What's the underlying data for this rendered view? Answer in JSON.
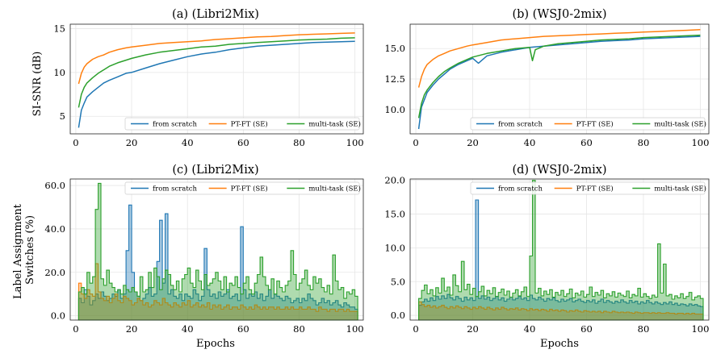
{
  "chart_data": [
    {
      "id": "a",
      "type": "line",
      "title": "(a) (Libri2Mix)",
      "xlabel": "",
      "ylabel": "SI-SNR (dB)",
      "xlim": [
        -2,
        103
      ],
      "ylim": [
        3,
        15.5
      ],
      "xticks": [
        0,
        20,
        40,
        60,
        80,
        100
      ],
      "yticks": [
        5,
        10,
        15
      ],
      "ytick_labels": [
        "5",
        "10",
        "15"
      ],
      "legend": "bottom-right",
      "grid": true,
      "series": [
        {
          "name": "from scratch",
          "color": "#1f77b4",
          "x": [
            1,
            2,
            3,
            4,
            6,
            8,
            10,
            12,
            15,
            18,
            20,
            25,
            30,
            35,
            40,
            45,
            50,
            55,
            60,
            65,
            70,
            75,
            80,
            85,
            90,
            95,
            100
          ],
          "values": [
            3.7,
            5.7,
            6.5,
            7.2,
            7.8,
            8.3,
            8.8,
            9.1,
            9.5,
            9.9,
            10.0,
            10.5,
            11.0,
            11.4,
            11.8,
            12.1,
            12.3,
            12.6,
            12.8,
            13.0,
            13.1,
            13.2,
            13.3,
            13.4,
            13.45,
            13.5,
            13.55
          ]
        },
        {
          "name": "PT-FT (SE)",
          "color": "#ff7f0e",
          "x": [
            1,
            2,
            3,
            4,
            6,
            8,
            10,
            12,
            15,
            18,
            20,
            25,
            30,
            35,
            40,
            45,
            50,
            55,
            60,
            65,
            70,
            75,
            80,
            85,
            90,
            95,
            100
          ],
          "values": [
            8.7,
            9.9,
            10.6,
            11.0,
            11.5,
            11.8,
            12.0,
            12.3,
            12.6,
            12.8,
            12.9,
            13.1,
            13.3,
            13.4,
            13.5,
            13.6,
            13.75,
            13.85,
            13.95,
            14.05,
            14.1,
            14.2,
            14.3,
            14.35,
            14.4,
            14.45,
            14.5
          ]
        },
        {
          "name": "multi-task (SE)",
          "color": "#2ca02c",
          "x": [
            1,
            2,
            3,
            4,
            6,
            8,
            10,
            12,
            15,
            18,
            20,
            25,
            30,
            35,
            40,
            45,
            50,
            55,
            60,
            65,
            70,
            75,
            80,
            85,
            90,
            95,
            100
          ],
          "values": [
            6.0,
            7.5,
            8.3,
            8.8,
            9.4,
            9.9,
            10.3,
            10.7,
            11.1,
            11.4,
            11.6,
            12.0,
            12.3,
            12.5,
            12.7,
            12.9,
            13.0,
            13.2,
            13.3,
            13.4,
            13.5,
            13.6,
            13.7,
            13.75,
            13.8,
            13.9,
            13.95
          ]
        }
      ]
    },
    {
      "id": "b",
      "type": "line",
      "title": "(b) (WSJ0-2mix)",
      "xlabel": "",
      "ylabel": "",
      "xlim": [
        -2,
        103
      ],
      "ylim": [
        8,
        17
      ],
      "xticks": [
        0,
        20,
        40,
        60,
        80,
        100
      ],
      "yticks": [
        10,
        12.5,
        15
      ],
      "ytick_labels": [
        "10.0",
        "12.5",
        "15.0"
      ],
      "legend": "bottom-right",
      "grid": true,
      "series": [
        {
          "name": "from scratch",
          "color": "#1f77b4",
          "x": [
            1,
            2,
            3,
            4,
            6,
            8,
            10,
            12,
            15,
            18,
            20,
            22,
            25,
            30,
            35,
            40,
            45,
            50,
            55,
            60,
            65,
            70,
            75,
            80,
            85,
            90,
            95,
            100
          ],
          "values": [
            8.4,
            10.2,
            10.8,
            11.4,
            12.0,
            12.5,
            12.9,
            13.3,
            13.7,
            14.0,
            14.2,
            13.8,
            14.4,
            14.7,
            14.9,
            15.1,
            15.2,
            15.3,
            15.4,
            15.5,
            15.6,
            15.65,
            15.7,
            15.8,
            15.85,
            15.9,
            15.95,
            16.0
          ]
        },
        {
          "name": "PT-FT (SE)",
          "color": "#ff7f0e",
          "x": [
            1,
            2,
            3,
            4,
            6,
            8,
            10,
            12,
            15,
            18,
            20,
            25,
            30,
            35,
            40,
            45,
            50,
            55,
            60,
            65,
            70,
            75,
            80,
            85,
            90,
            95,
            100
          ],
          "values": [
            11.8,
            12.7,
            13.3,
            13.7,
            14.1,
            14.4,
            14.6,
            14.8,
            15.0,
            15.2,
            15.3,
            15.5,
            15.7,
            15.8,
            15.9,
            16.0,
            16.05,
            16.1,
            16.15,
            16.2,
            16.25,
            16.3,
            16.35,
            16.4,
            16.45,
            16.5,
            16.55
          ]
        },
        {
          "name": "multi-task (SE)",
          "color": "#2ca02c",
          "x": [
            1,
            2,
            3,
            4,
            6,
            8,
            10,
            12,
            15,
            18,
            20,
            25,
            30,
            35,
            40,
            41,
            42,
            45,
            50,
            55,
            60,
            65,
            70,
            75,
            80,
            85,
            90,
            95,
            100
          ],
          "values": [
            9.3,
            10.5,
            11.2,
            11.6,
            12.2,
            12.7,
            13.1,
            13.4,
            13.8,
            14.1,
            14.3,
            14.6,
            14.8,
            15.0,
            15.1,
            14.0,
            14.9,
            15.2,
            15.4,
            15.5,
            15.6,
            15.7,
            15.75,
            15.8,
            15.9,
            15.95,
            16.0,
            16.05,
            16.1
          ]
        }
      ]
    },
    {
      "id": "c",
      "type": "area",
      "title": "(c) (Libri2Mix)",
      "xlabel": "Epochs",
      "ylabel": "Label Assignment\nSwitches (%)",
      "xlim": [
        -2,
        103
      ],
      "ylim": [
        -2,
        63
      ],
      "xticks": [
        0,
        20,
        40,
        60,
        80,
        100
      ],
      "yticks": [
        0,
        20,
        40,
        60
      ],
      "ytick_labels": [
        "0.0",
        "20.0",
        "40.0",
        "60.0"
      ],
      "legend": "top-right",
      "grid": true,
      "series": [
        {
          "name": "from scratch",
          "color": "#1f77b4",
          "values": [
            8,
            6,
            12,
            9,
            5,
            7,
            10,
            8,
            11,
            9,
            7,
            8,
            10,
            9,
            12,
            8,
            10,
            30,
            51,
            20,
            11,
            9,
            7,
            8,
            10,
            13,
            9,
            10,
            25,
            44,
            15,
            47,
            10,
            12,
            9,
            8,
            10,
            7,
            10,
            9,
            8,
            12,
            10,
            7,
            9,
            31,
            12,
            9,
            10,
            8,
            11,
            9,
            10,
            12,
            8,
            9,
            10,
            7,
            41,
            12,
            8,
            10,
            9,
            11,
            8,
            10,
            7,
            9,
            12,
            8,
            10,
            9,
            8,
            7,
            9,
            8,
            6,
            7,
            8,
            6,
            8,
            7,
            10,
            8,
            7,
            5,
            6,
            8,
            6,
            7,
            5,
            6,
            7,
            5,
            4,
            6,
            5,
            4,
            4,
            3
          ]
        },
        {
          "name": "PT-FT (SE)",
          "color": "#ff7f0e",
          "values": [
            15,
            10,
            8,
            12,
            10,
            9,
            24,
            11,
            8,
            7,
            9,
            6,
            8,
            10,
            7,
            6,
            9,
            8,
            7,
            5,
            6,
            8,
            7,
            5,
            6,
            4,
            5,
            7,
            6,
            5,
            8,
            6,
            5,
            4,
            6,
            5,
            4,
            6,
            5,
            7,
            4,
            5,
            6,
            4,
            5,
            4,
            6,
            3,
            5,
            4,
            5,
            3,
            4,
            5,
            3,
            4,
            4,
            3,
            5,
            4,
            3,
            4,
            3,
            5,
            4,
            3,
            4,
            3,
            4,
            4,
            3,
            4,
            3,
            3,
            4,
            3,
            4,
            3,
            3,
            4,
            3,
            3,
            4,
            3,
            3,
            2,
            4,
            3,
            3,
            2,
            3,
            3,
            2,
            3,
            3,
            2,
            3,
            2,
            2,
            2
          ]
        },
        {
          "name": "multi-task (SE)",
          "color": "#2ca02c",
          "values": [
            11,
            13,
            10,
            20,
            15,
            18,
            49,
            61,
            17,
            14,
            21,
            15,
            13,
            11,
            12,
            10,
            14,
            12,
            11,
            13,
            11,
            9,
            18,
            11,
            12,
            20,
            13,
            22,
            18,
            12,
            17,
            21,
            19,
            14,
            12,
            16,
            11,
            17,
            19,
            22,
            15,
            13,
            21,
            16,
            12,
            19,
            14,
            15,
            17,
            20,
            16,
            12,
            18,
            11,
            15,
            14,
            18,
            13,
            10,
            15,
            18,
            12,
            10,
            15,
            19,
            27,
            18,
            14,
            12,
            17,
            10,
            16,
            13,
            11,
            14,
            16,
            30,
            19,
            12,
            15,
            17,
            21,
            14,
            12,
            18,
            15,
            17,
            13,
            11,
            14,
            10,
            28,
            16,
            12,
            13,
            8,
            11,
            10,
            12,
            9
          ]
        }
      ]
    },
    {
      "id": "d",
      "type": "area",
      "title": "(d) (WSJ0-2mix)",
      "xlabel": "Epochs",
      "ylabel": "",
      "xlim": [
        -2,
        103
      ],
      "ylim": [
        -0.7,
        20.2
      ],
      "xticks": [
        0,
        20,
        40,
        60,
        80,
        100
      ],
      "yticks": [
        0,
        5,
        10,
        15,
        20
      ],
      "ytick_labels": [
        "0.0",
        "5.0",
        "10.0",
        "15.0",
        "20.0"
      ],
      "legend": "top-right",
      "grid": true,
      "series": [
        {
          "name": "from scratch",
          "color": "#1f77b4",
          "values": [
            1.5,
            2.0,
            2.4,
            2.1,
            2.6,
            2.2,
            2.8,
            2.4,
            2.9,
            2.5,
            3.1,
            2.6,
            2.3,
            2.8,
            2.5,
            2.1,
            2.7,
            2.3,
            2.6,
            2.2,
            17.1,
            2.5,
            2.9,
            2.4,
            2.7,
            2.2,
            2.5,
            2.8,
            2.3,
            2.6,
            2.1,
            2.4,
            2.7,
            2.3,
            2.5,
            2.8,
            2.4,
            2.6,
            2.2,
            3.0,
            2.5,
            2.3,
            2.7,
            2.4,
            2.1,
            2.5,
            2.3,
            2.6,
            2.2,
            2.0,
            2.4,
            2.1,
            2.3,
            2.5,
            2.0,
            2.2,
            2.4,
            2.1,
            1.9,
            2.2,
            2.0,
            2.3,
            1.8,
            2.1,
            2.4,
            1.9,
            2.2,
            2.0,
            1.8,
            2.1,
            1.9,
            2.3,
            2.0,
            1.8,
            2.2,
            1.9,
            2.1,
            1.7,
            2.0,
            1.8,
            2.2,
            1.9,
            1.7,
            2.0,
            1.8,
            1.6,
            1.9,
            1.7,
            2.0,
            1.6,
            1.8,
            1.5,
            1.7,
            1.6,
            1.4,
            1.7,
            1.5,
            1.6,
            1.4,
            1.3
          ]
        },
        {
          "name": "PT-FT (SE)",
          "color": "#ff7f0e",
          "values": [
            2.0,
            1.6,
            1.3,
            1.5,
            1.2,
            1.4,
            1.1,
            1.3,
            1.5,
            1.2,
            1.0,
            1.3,
            1.1,
            1.4,
            1.2,
            1.0,
            1.3,
            1.1,
            0.9,
            1.2,
            1.0,
            1.3,
            1.1,
            0.9,
            1.2,
            1.0,
            0.8,
            1.1,
            0.9,
            1.2,
            1.0,
            0.8,
            1.0,
            0.9,
            1.1,
            0.8,
            1.0,
            0.9,
            0.7,
            1.0,
            0.8,
            0.9,
            0.7,
            0.9,
            0.8,
            0.6,
            0.9,
            0.7,
            0.8,
            0.6,
            0.8,
            0.7,
            0.5,
            0.7,
            0.6,
            0.8,
            0.6,
            0.5,
            0.7,
            0.6,
            0.5,
            0.6,
            0.5,
            0.6,
            0.4,
            0.6,
            0.5,
            0.4,
            0.6,
            0.5,
            0.4,
            0.5,
            0.4,
            0.5,
            0.4,
            0.3,
            0.5,
            0.4,
            0.3,
            0.4,
            0.4,
            0.3,
            0.4,
            0.3,
            0.4,
            0.3,
            0.3,
            0.4,
            0.3,
            0.3,
            0.2,
            0.3,
            0.3,
            0.2,
            0.3,
            0.2,
            0.3,
            0.2,
            0.2,
            0.2
          ]
        },
        {
          "name": "multi-task (SE)",
          "color": "#2ca02c",
          "values": [
            2.5,
            3.7,
            4.5,
            3.2,
            3.8,
            2.9,
            4.1,
            3.3,
            5.5,
            3.6,
            4.2,
            3.0,
            6.0,
            4.4,
            3.5,
            8.0,
            3.8,
            4.6,
            3.1,
            4.0,
            2.8,
            3.5,
            4.3,
            2.9,
            3.7,
            3.2,
            4.1,
            2.8,
            3.4,
            3.9,
            3.0,
            3.6,
            2.7,
            3.3,
            3.8,
            2.9,
            3.5,
            4.2,
            2.8,
            8.8,
            20.0,
            3.3,
            4.0,
            2.9,
            3.6,
            3.1,
            3.8,
            2.7,
            3.4,
            3.0,
            3.7,
            2.8,
            3.2,
            3.9,
            2.6,
            3.3,
            3.0,
            3.6,
            2.7,
            3.1,
            4.2,
            2.8,
            3.4,
            3.0,
            3.7,
            2.6,
            3.2,
            2.9,
            3.5,
            2.7,
            3.3,
            3.0,
            2.8,
            3.6,
            2.6,
            3.1,
            2.9,
            4.0,
            2.7,
            3.2,
            2.8,
            2.5,
            3.0,
            2.7,
            10.6,
            3.3,
            7.6,
            2.9,
            3.1,
            2.4,
            2.9,
            2.6,
            3.2,
            2.5,
            2.8,
            3.4,
            2.3,
            2.7,
            2.9,
            2.5
          ]
        }
      ]
    }
  ]
}
